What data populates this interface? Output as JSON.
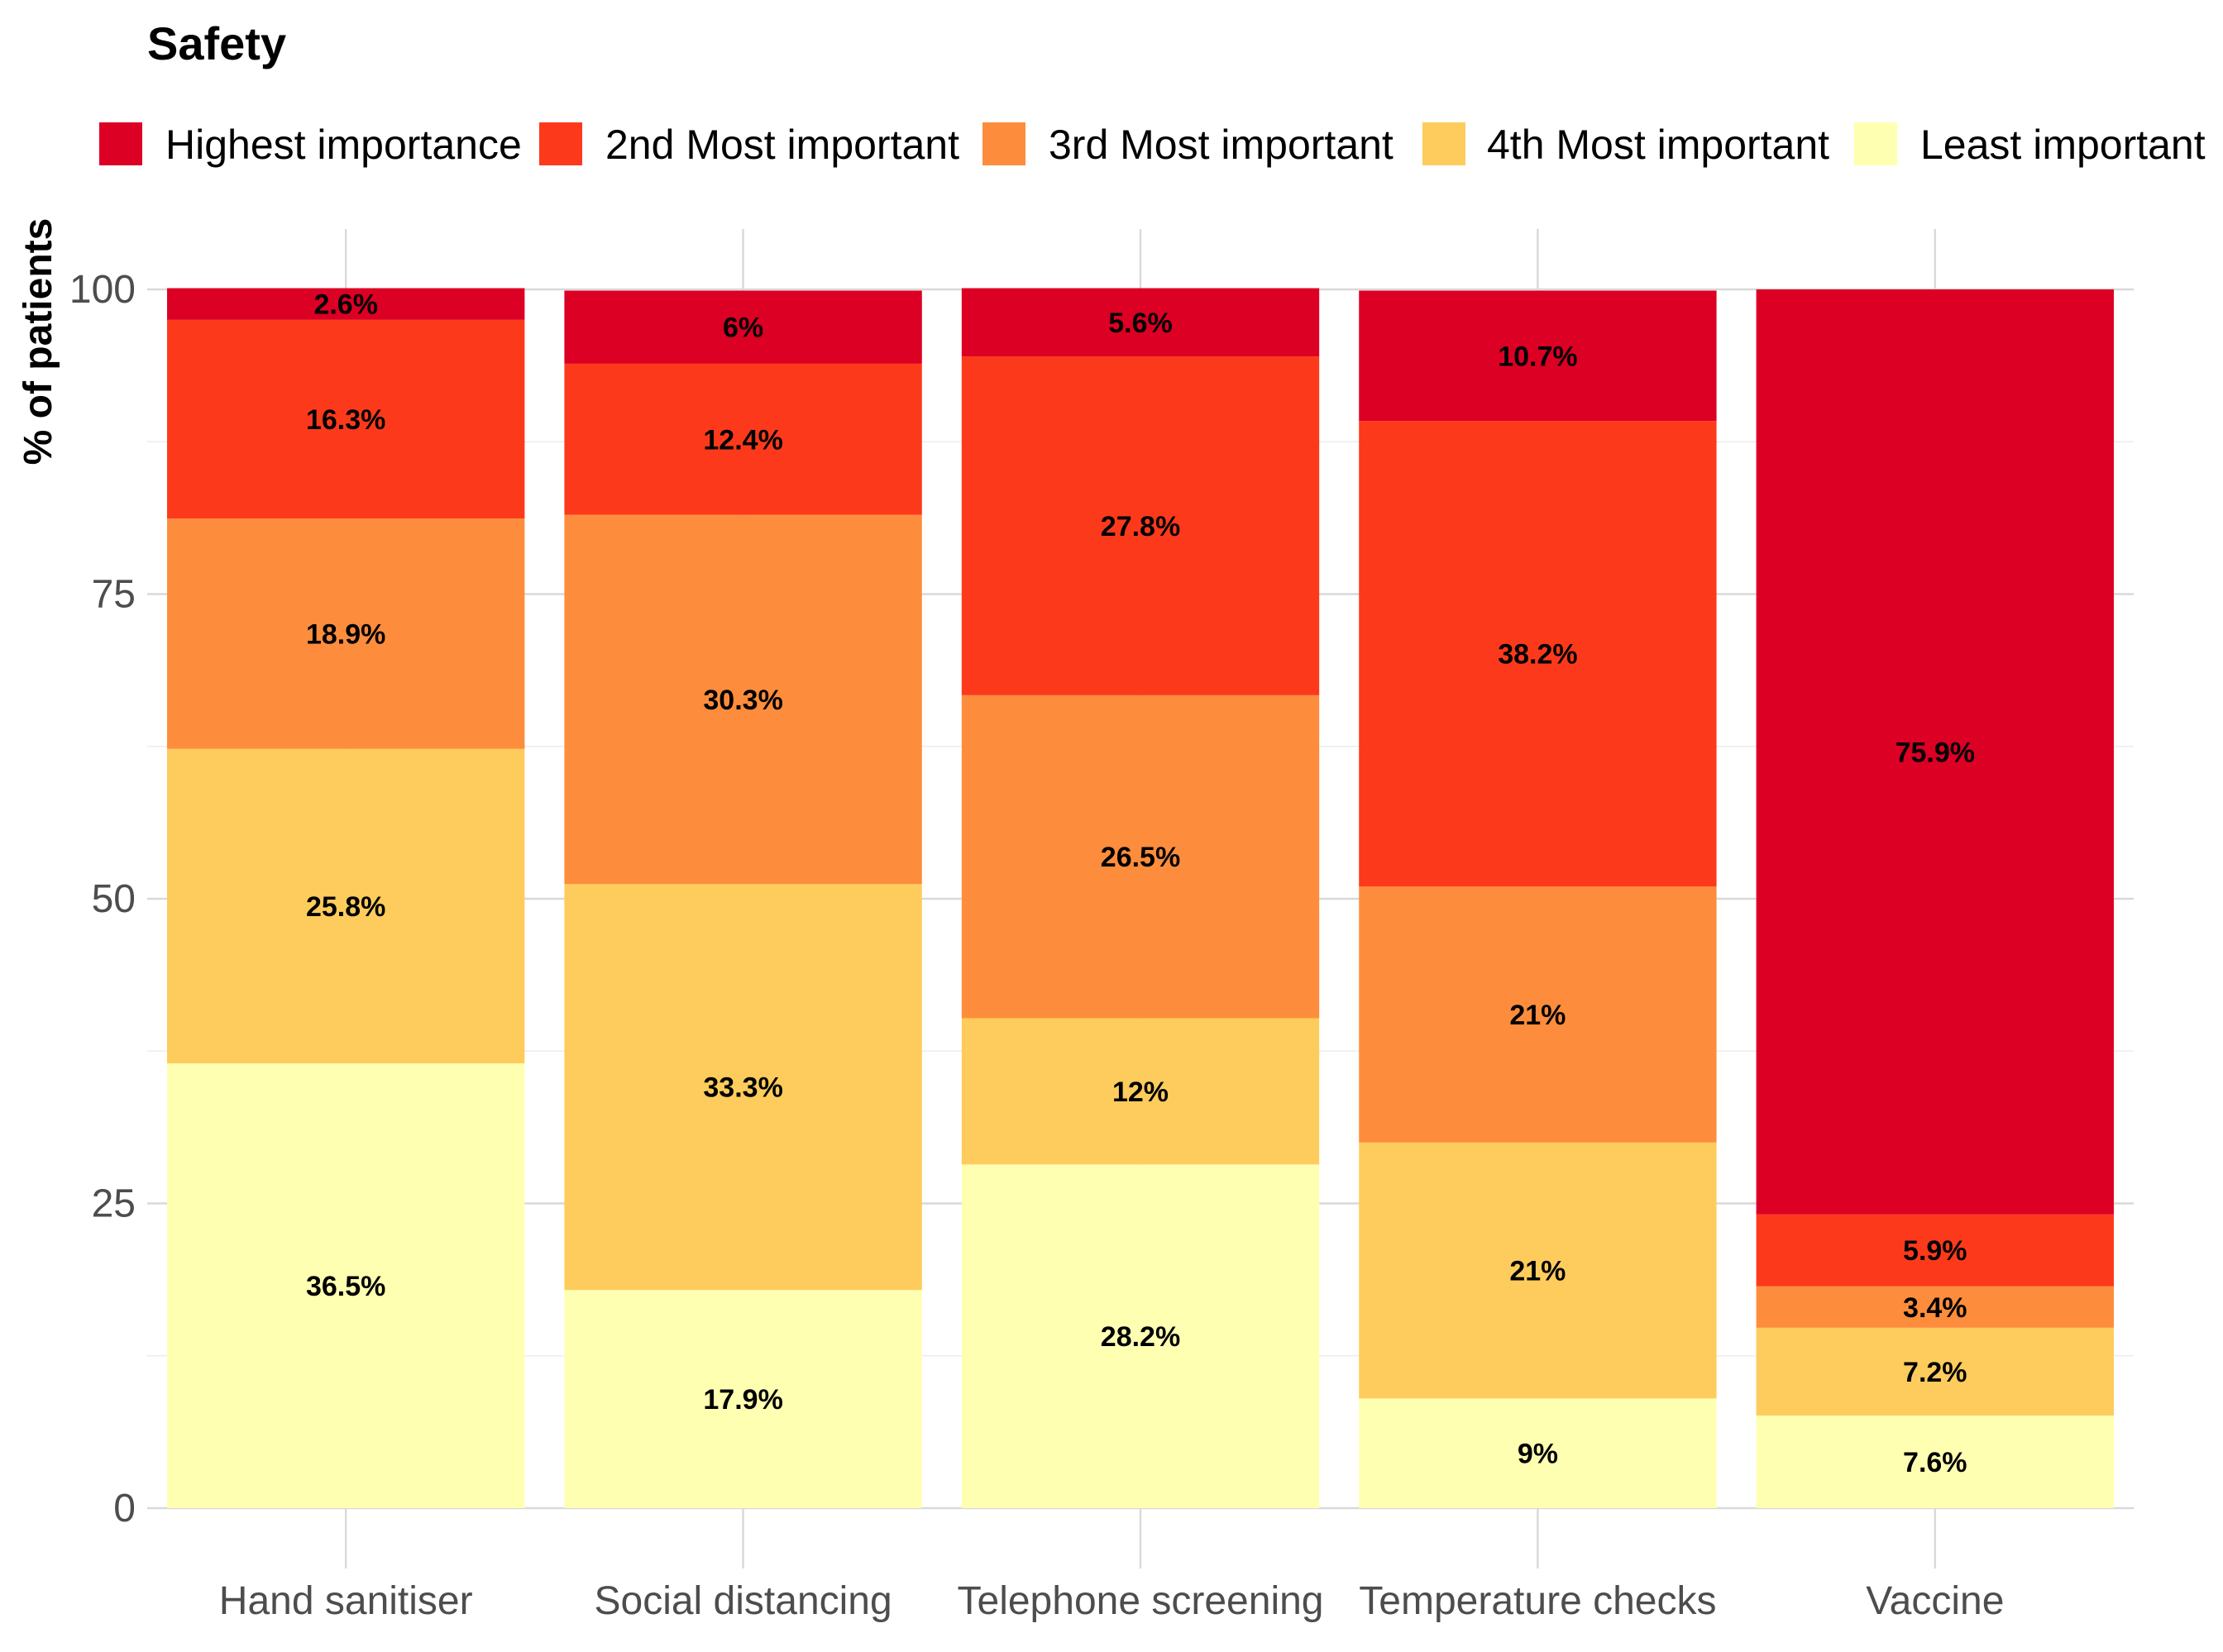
{
  "chart_data": {
    "type": "bar",
    "stacked": true,
    "title": "Safety",
    "xlabel": "",
    "ylabel": "% of patients",
    "ylim": [
      0,
      100
    ],
    "yticks": [
      0,
      25,
      50,
      75,
      100
    ],
    "legend_position": "top",
    "categories": [
      "Hand sanitiser",
      "Social distancing",
      "Telephone screening",
      "Temperature checks",
      "Vaccine"
    ],
    "series": [
      {
        "name": "Least important",
        "color": "#FFFFB2",
        "values": [
          36.5,
          17.9,
          28.2,
          9,
          7.6
        ],
        "labels": [
          "36.5%",
          "17.9%",
          "28.2%",
          "9%",
          "7.6%"
        ]
      },
      {
        "name": "4th Most important",
        "color": "#FECC5C",
        "values": [
          25.8,
          33.3,
          12,
          21,
          7.2
        ],
        "labels": [
          "25.8%",
          "33.3%",
          "12%",
          "21%",
          "7.2%"
        ]
      },
      {
        "name": "3rd Most important",
        "color": "#FD8D3C",
        "values": [
          18.9,
          30.3,
          26.5,
          21,
          3.4
        ],
        "labels": [
          "18.9%",
          "30.3%",
          "26.5%",
          "21%",
          "3.4%"
        ]
      },
      {
        "name": "2nd Most important",
        "color": "#FC3A1B",
        "values": [
          16.3,
          12.4,
          27.8,
          38.2,
          5.9
        ],
        "labels": [
          "16.3%",
          "12.4%",
          "27.8%",
          "38.2%",
          "5.9%"
        ]
      },
      {
        "name": "Highest importance",
        "color": "#DC0024",
        "values": [
          2.6,
          6,
          5.6,
          10.7,
          75.9
        ],
        "labels": [
          "2.6%",
          "6%",
          "5.6%",
          "10.7%",
          "75.9%"
        ]
      }
    ],
    "legend_order": [
      "Highest importance",
      "2nd Most important",
      "3rd Most important",
      "4th Most important",
      "Least important"
    ]
  }
}
